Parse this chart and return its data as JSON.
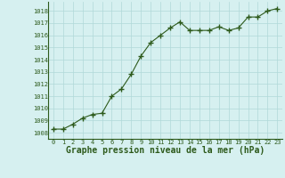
{
  "x": [
    0,
    1,
    2,
    3,
    4,
    5,
    6,
    7,
    8,
    9,
    10,
    11,
    12,
    13,
    14,
    15,
    16,
    17,
    18,
    19,
    20,
    21,
    22,
    23
  ],
  "y": [
    1008.3,
    1008.3,
    1008.7,
    1009.2,
    1009.5,
    1009.6,
    1011.0,
    1011.6,
    1012.8,
    1014.3,
    1015.4,
    1016.0,
    1016.6,
    1017.1,
    1016.4,
    1016.4,
    1016.4,
    1016.7,
    1016.4,
    1016.6,
    1017.5,
    1017.5,
    1018.0,
    1018.2
  ],
  "ylim": [
    1007.5,
    1018.75
  ],
  "xlim": [
    -0.5,
    23.5
  ],
  "yticks": [
    1008,
    1009,
    1010,
    1011,
    1012,
    1013,
    1014,
    1015,
    1016,
    1017,
    1018
  ],
  "xticks": [
    0,
    1,
    2,
    3,
    4,
    5,
    6,
    7,
    8,
    9,
    10,
    11,
    12,
    13,
    14,
    15,
    16,
    17,
    18,
    19,
    20,
    21,
    22,
    23
  ],
  "xlabel": "Graphe pression niveau de la mer (hPa)",
  "line_color": "#2d5a1b",
  "marker_color": "#2d5a1b",
  "bg_color": "#d6f0f0",
  "grid_color": "#b0d8d8",
  "tick_fontsize": 5.0,
  "xlabel_fontsize": 7.0
}
